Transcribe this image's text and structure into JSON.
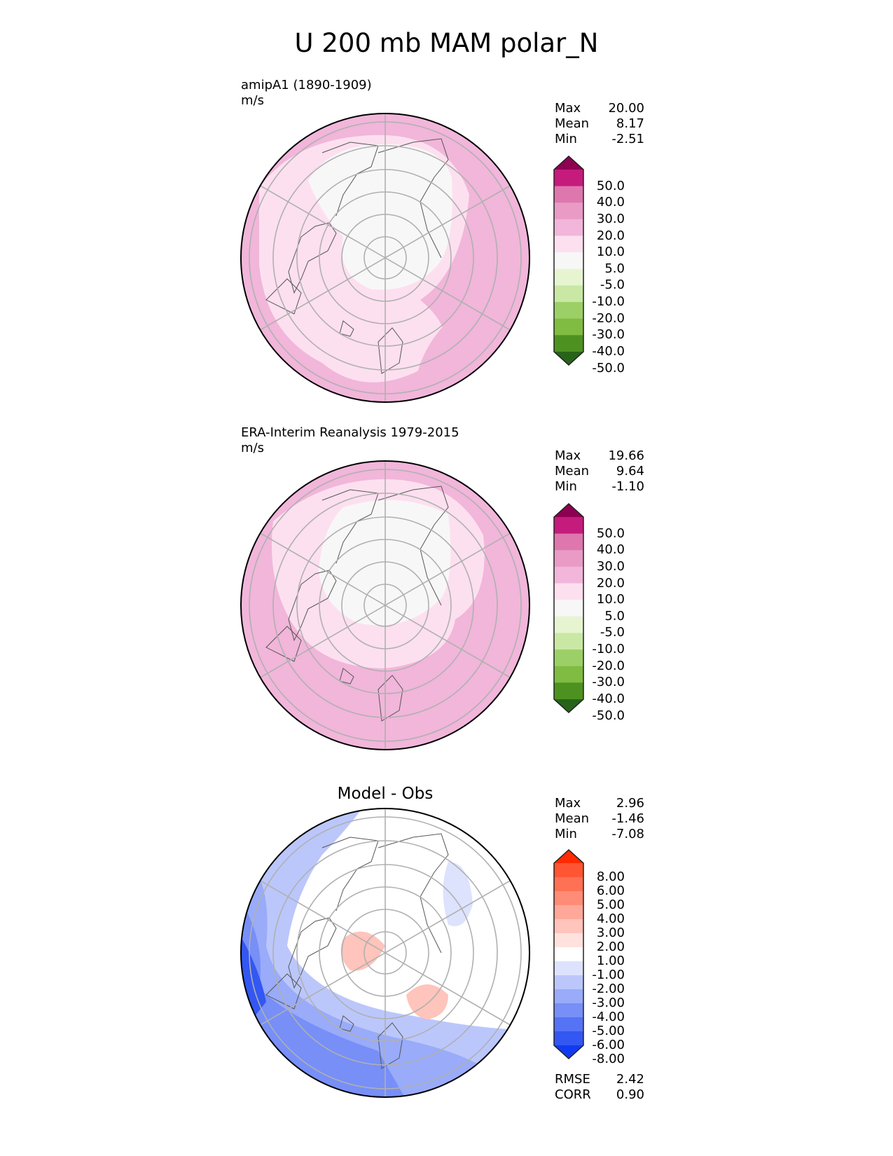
{
  "title": "U 200 mb MAM polar_N",
  "panels": [
    {
      "id": "model",
      "label_line1": "amipA1 (1890-1909)",
      "label_line2": "m/s",
      "stats": [
        {
          "label": "Max",
          "value": "20.00"
        },
        {
          "label": "Mean",
          "value": "8.17"
        },
        {
          "label": "Min",
          "value": "-2.51"
        }
      ]
    },
    {
      "id": "obs",
      "label_line1": "ERA-Interim Reanalysis 1979-2015",
      "label_line2": "m/s",
      "stats": [
        {
          "label": "Max",
          "value": "19.66"
        },
        {
          "label": "Mean",
          "value": "9.64"
        },
        {
          "label": "Min",
          "value": "-1.10"
        }
      ]
    },
    {
      "id": "diff",
      "title": "Model - Obs",
      "stats": [
        {
          "label": "Max",
          "value": "2.96"
        },
        {
          "label": "Mean",
          "value": "-1.46"
        },
        {
          "label": "Min",
          "value": "-7.08"
        }
      ],
      "metrics": [
        {
          "label": "RMSE",
          "value": "2.42"
        },
        {
          "label": "CORR",
          "value": "0.90"
        }
      ]
    }
  ],
  "colorbars": {
    "field": {
      "ticks": [
        "50.0",
        "40.0",
        "30.0",
        "20.0",
        "10.0",
        "5.0",
        "-5.0",
        "-10.0",
        "-20.0",
        "-30.0",
        "-40.0",
        "-50.0"
      ],
      "colors": [
        "#8e0152",
        "#c51b7d",
        "#de77ae",
        "#e99bc6",
        "#f1b6da",
        "#fde0ef",
        "#f7f7f7",
        "#e6f5d0",
        "#c8e8a4",
        "#9cd067",
        "#7fbc41",
        "#4d9221",
        "#276419"
      ]
    },
    "diff": {
      "ticks": [
        "8.00",
        "6.00",
        "5.00",
        "4.00",
        "3.00",
        "2.00",
        "1.00",
        "-1.00",
        "-2.00",
        "-3.00",
        "-4.00",
        "-5.00",
        "-6.00",
        "-8.00"
      ],
      "colors": [
        "#ff2a00",
        "#ff5533",
        "#ff7155",
        "#ff8c77",
        "#ffa899",
        "#ffc4bb",
        "#ffe2dd",
        "#ffffff",
        "#dde3fd",
        "#bbc7fb",
        "#99abf9",
        "#778ff7",
        "#5573f5",
        "#3357f3",
        "#113bf1"
      ]
    }
  },
  "chart_data": [
    {
      "type": "heatmap",
      "title": "amipA1 (1890-1909)",
      "units": "m/s",
      "projection": "north polar stereographic",
      "levels": [
        -50,
        -40,
        -30,
        -20,
        -10,
        -5,
        5,
        10,
        20,
        30,
        40,
        50
      ],
      "max": 20.0,
      "mean": 8.17,
      "min": -2.51
    },
    {
      "type": "heatmap",
      "title": "ERA-Interim Reanalysis 1979-2015",
      "units": "m/s",
      "projection": "north polar stereographic",
      "levels": [
        -50,
        -40,
        -30,
        -20,
        -10,
        -5,
        5,
        10,
        20,
        30,
        40,
        50
      ],
      "max": 19.66,
      "mean": 9.64,
      "min": -1.1
    },
    {
      "type": "heatmap",
      "title": "Model - Obs",
      "projection": "north polar stereographic",
      "levels": [
        -8,
        -6,
        -5,
        -4,
        -3,
        -2,
        -1,
        1,
        2,
        3,
        4,
        5,
        6,
        8
      ],
      "max": 2.96,
      "mean": -1.46,
      "min": -7.08,
      "rmse": 2.42,
      "corr": 0.9
    }
  ]
}
